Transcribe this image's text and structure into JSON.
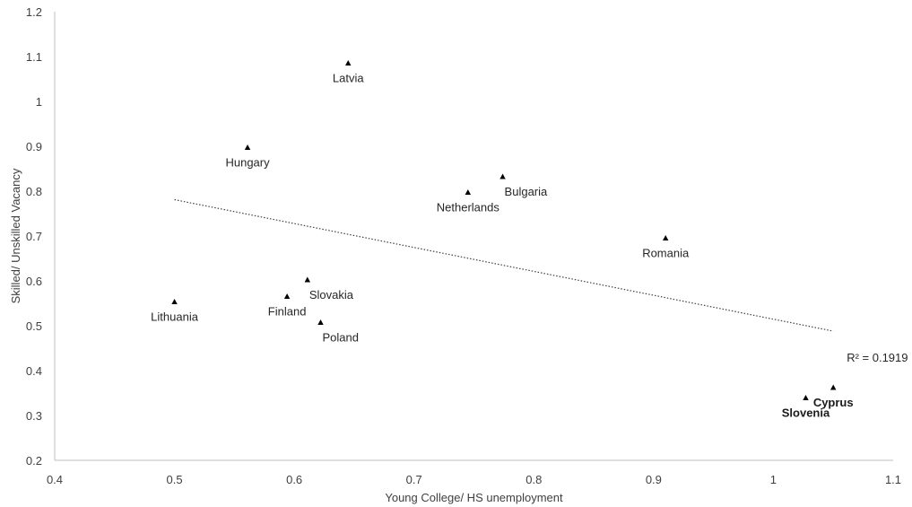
{
  "chart_data": {
    "type": "scatter",
    "title": "",
    "xlabel": "Young College/ HS unemployment",
    "ylabel": "Skilled/ Unskilled Vacancy",
    "xlim": [
      0.4,
      1.1
    ],
    "ylim": [
      0.2,
      1.2
    ],
    "x_ticks": [
      0.4,
      0.5,
      0.6,
      0.7,
      0.8,
      0.9,
      1,
      1.1
    ],
    "x_tick_labels": [
      "0.4",
      "0.5",
      "0.6",
      "0.7",
      "0.8",
      "0.9",
      "1",
      "1.1"
    ],
    "y_ticks": [
      0.2,
      0.3,
      0.4,
      0.5,
      0.6,
      0.7,
      0.8,
      0.9,
      1,
      1.1,
      1.2
    ],
    "y_tick_labels": [
      "0.2",
      "0.3",
      "0.4",
      "0.5",
      "0.6",
      "0.7",
      "0.8",
      "0.9",
      "1",
      "1.1",
      "1.2"
    ],
    "grid": false,
    "marker": "triangle",
    "points": [
      {
        "label": "Latvia",
        "x": 0.645,
        "y": 1.085,
        "label_pos": "below",
        "bold": false
      },
      {
        "label": "Hungary",
        "x": 0.561,
        "y": 0.897,
        "label_pos": "below",
        "bold": false
      },
      {
        "label": "Bulgaria",
        "x": 0.774,
        "y": 0.832,
        "label_pos": "below-right",
        "bold": false
      },
      {
        "label": "Netherlands",
        "x": 0.745,
        "y": 0.797,
        "label_pos": "below",
        "bold": false
      },
      {
        "label": "Romania",
        "x": 0.91,
        "y": 0.695,
        "label_pos": "below",
        "bold": false
      },
      {
        "label": "Slovakia",
        "x": 0.611,
        "y": 0.602,
        "label_pos": "below-right",
        "bold": false
      },
      {
        "label": "Finland",
        "x": 0.594,
        "y": 0.565,
        "label_pos": "below",
        "bold": false
      },
      {
        "label": "Lithuania",
        "x": 0.5,
        "y": 0.553,
        "label_pos": "below",
        "bold": false
      },
      {
        "label": "Poland",
        "x": 0.622,
        "y": 0.507,
        "label_pos": "below-right",
        "bold": false
      },
      {
        "label": "Cyprus",
        "x": 1.05,
        "y": 0.362,
        "label_pos": "below",
        "bold": true
      },
      {
        "label": "Slovenia",
        "x": 1.027,
        "y": 0.339,
        "label_pos": "below",
        "bold": true
      }
    ],
    "trendline": {
      "type": "linear",
      "style": "dotted",
      "x_start": 0.5,
      "y_start": 0.781,
      "x_end": 1.05,
      "y_end": 0.488,
      "r2_text": "R² = 0.1919"
    }
  }
}
